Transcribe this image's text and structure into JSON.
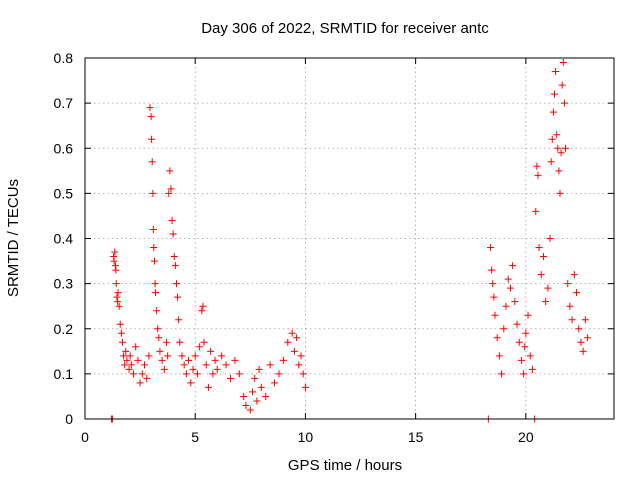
{
  "chart_data": {
    "type": "scatter",
    "title": "Day 306 of 2022, SRMTID for receiver antc",
    "xlabel": "GPS time / hours",
    "ylabel": "SRMTID / TECUs",
    "xlim": [
      0,
      24
    ],
    "ylim": [
      0,
      0.8
    ],
    "xticks": [
      0,
      5,
      10,
      15,
      20
    ],
    "yticks": [
      0,
      0.1,
      0.2,
      0.3,
      0.4,
      0.5,
      0.6,
      0.7,
      0.8
    ],
    "grid": true,
    "marker": "plus",
    "color": "#ff0000",
    "series": [
      {
        "name": "antc",
        "points": [
          [
            1.2,
            0.0
          ],
          [
            1.25,
            0.0
          ],
          [
            1.3,
            0.36
          ],
          [
            1.32,
            0.35
          ],
          [
            1.35,
            0.37
          ],
          [
            1.38,
            0.34
          ],
          [
            1.4,
            0.33
          ],
          [
            1.42,
            0.3
          ],
          [
            1.45,
            0.27
          ],
          [
            1.48,
            0.26
          ],
          [
            1.5,
            0.28
          ],
          [
            1.55,
            0.25
          ],
          [
            1.6,
            0.21
          ],
          [
            1.65,
            0.19
          ],
          [
            1.7,
            0.17
          ],
          [
            1.75,
            0.14
          ],
          [
            1.8,
            0.12
          ],
          [
            1.85,
            0.15
          ],
          [
            1.9,
            0.13
          ],
          [
            2.0,
            0.11
          ],
          [
            2.05,
            0.14
          ],
          [
            2.1,
            0.12
          ],
          [
            2.2,
            0.1
          ],
          [
            2.3,
            0.16
          ],
          [
            2.4,
            0.13
          ],
          [
            2.5,
            0.08
          ],
          [
            2.6,
            0.1
          ],
          [
            2.7,
            0.12
          ],
          [
            2.8,
            0.09
          ],
          [
            2.9,
            0.14
          ],
          [
            2.95,
            0.69
          ],
          [
            3.0,
            0.67
          ],
          [
            3.02,
            0.62
          ],
          [
            3.05,
            0.57
          ],
          [
            3.08,
            0.5
          ],
          [
            3.1,
            0.42
          ],
          [
            3.12,
            0.38
          ],
          [
            3.15,
            0.35
          ],
          [
            3.18,
            0.3
          ],
          [
            3.2,
            0.28
          ],
          [
            3.25,
            0.24
          ],
          [
            3.3,
            0.2
          ],
          [
            3.35,
            0.18
          ],
          [
            3.4,
            0.15
          ],
          [
            3.5,
            0.13
          ],
          [
            3.6,
            0.11
          ],
          [
            3.7,
            0.17
          ],
          [
            3.75,
            0.14
          ],
          [
            3.8,
            0.5
          ],
          [
            3.85,
            0.55
          ],
          [
            3.9,
            0.51
          ],
          [
            3.95,
            0.44
          ],
          [
            4.0,
            0.41
          ],
          [
            4.05,
            0.36
          ],
          [
            4.1,
            0.34
          ],
          [
            4.15,
            0.3
          ],
          [
            4.2,
            0.27
          ],
          [
            4.25,
            0.22
          ],
          [
            4.3,
            0.17
          ],
          [
            4.4,
            0.14
          ],
          [
            4.5,
            0.12
          ],
          [
            4.6,
            0.1
          ],
          [
            4.7,
            0.13
          ],
          [
            4.8,
            0.08
          ],
          [
            4.9,
            0.11
          ],
          [
            5.0,
            0.14
          ],
          [
            5.1,
            0.1
          ],
          [
            5.2,
            0.16
          ],
          [
            5.3,
            0.24
          ],
          [
            5.35,
            0.25
          ],
          [
            5.4,
            0.17
          ],
          [
            5.5,
            0.12
          ],
          [
            5.6,
            0.07
          ],
          [
            5.7,
            0.15
          ],
          [
            5.8,
            0.1
          ],
          [
            5.9,
            0.13
          ],
          [
            6.0,
            0.11
          ],
          [
            6.2,
            0.14
          ],
          [
            6.4,
            0.12
          ],
          [
            6.6,
            0.09
          ],
          [
            6.8,
            0.13
          ],
          [
            7.0,
            0.1
          ],
          [
            7.2,
            0.05
          ],
          [
            7.3,
            0.03
          ],
          [
            7.5,
            0.02
          ],
          [
            7.6,
            0.06
          ],
          [
            7.7,
            0.09
          ],
          [
            7.8,
            0.04
          ],
          [
            7.9,
            0.11
          ],
          [
            8.0,
            0.07
          ],
          [
            8.2,
            0.05
          ],
          [
            8.4,
            0.12
          ],
          [
            8.6,
            0.08
          ],
          [
            8.8,
            0.1
          ],
          [
            9.0,
            0.13
          ],
          [
            9.2,
            0.17
          ],
          [
            9.4,
            0.19
          ],
          [
            9.5,
            0.15
          ],
          [
            9.6,
            0.18
          ],
          [
            9.7,
            0.12
          ],
          [
            9.8,
            0.14
          ],
          [
            9.9,
            0.1
          ],
          [
            10.0,
            0.07
          ],
          [
            18.3,
            0.0
          ],
          [
            18.4,
            0.38
          ],
          [
            18.45,
            0.33
          ],
          [
            18.5,
            0.3
          ],
          [
            18.55,
            0.27
          ],
          [
            18.6,
            0.23
          ],
          [
            18.7,
            0.18
          ],
          [
            18.8,
            0.14
          ],
          [
            18.9,
            0.1
          ],
          [
            19.0,
            0.2
          ],
          [
            19.1,
            0.25
          ],
          [
            19.2,
            0.31
          ],
          [
            19.3,
            0.29
          ],
          [
            19.4,
            0.34
          ],
          [
            19.5,
            0.26
          ],
          [
            19.6,
            0.21
          ],
          [
            19.7,
            0.17
          ],
          [
            19.8,
            0.13
          ],
          [
            19.9,
            0.1
          ],
          [
            19.95,
            0.16
          ],
          [
            20.0,
            0.19
          ],
          [
            20.1,
            0.23
          ],
          [
            20.2,
            0.14
          ],
          [
            20.3,
            0.11
          ],
          [
            20.4,
            0.0
          ],
          [
            20.45,
            0.46
          ],
          [
            20.5,
            0.56
          ],
          [
            20.55,
            0.54
          ],
          [
            20.6,
            0.38
          ],
          [
            20.7,
            0.32
          ],
          [
            20.8,
            0.36
          ],
          [
            20.9,
            0.26
          ],
          [
            21.0,
            0.29
          ],
          [
            21.1,
            0.4
          ],
          [
            21.15,
            0.57
          ],
          [
            21.2,
            0.62
          ],
          [
            21.25,
            0.68
          ],
          [
            21.3,
            0.72
          ],
          [
            21.35,
            0.77
          ],
          [
            21.4,
            0.63
          ],
          [
            21.45,
            0.6
          ],
          [
            21.5,
            0.55
          ],
          [
            21.55,
            0.5
          ],
          [
            21.6,
            0.59
          ],
          [
            21.65,
            0.74
          ],
          [
            21.7,
            0.79
          ],
          [
            21.75,
            0.7
          ],
          [
            21.8,
            0.6
          ],
          [
            21.9,
            0.3
          ],
          [
            22.0,
            0.25
          ],
          [
            22.1,
            0.22
          ],
          [
            22.2,
            0.32
          ],
          [
            22.3,
            0.28
          ],
          [
            22.4,
            0.2
          ],
          [
            22.5,
            0.17
          ],
          [
            22.6,
            0.15
          ],
          [
            22.7,
            0.22
          ],
          [
            22.8,
            0.18
          ]
        ]
      }
    ]
  }
}
